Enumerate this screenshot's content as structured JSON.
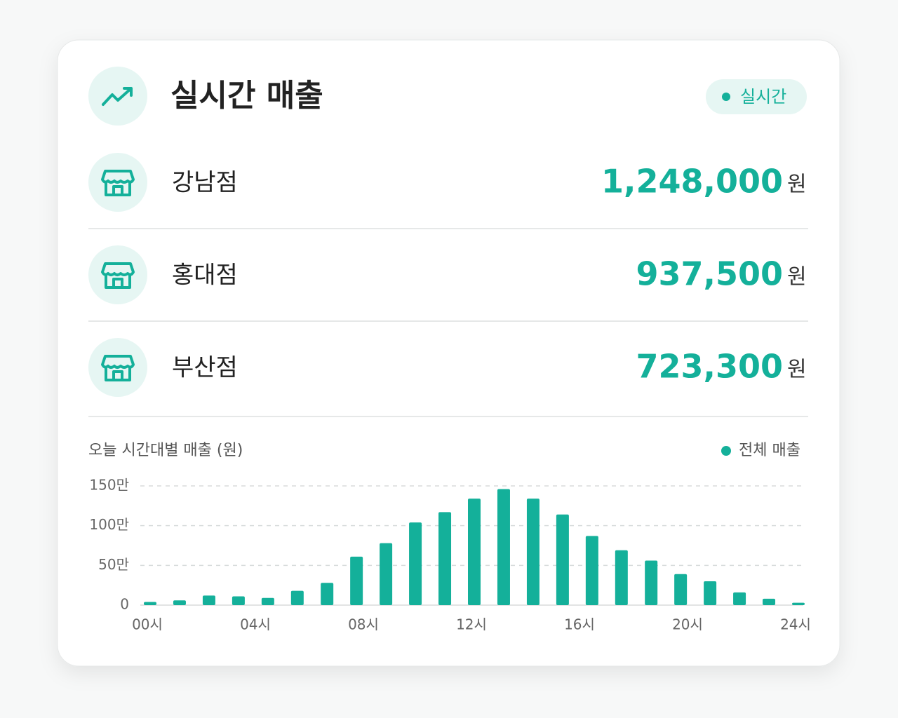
{
  "header": {
    "title": "실시간 매출",
    "badge": "실시간"
  },
  "stores": [
    {
      "name": "강남점",
      "amount": "1,248,000",
      "unit": "원"
    },
    {
      "name": "홍대점",
      "amount": "937,500",
      "unit": "원"
    },
    {
      "name": "부산점",
      "amount": "723,300",
      "unit": "원"
    }
  ],
  "chart_data": {
    "type": "bar",
    "title": "오늘 시간대별 매출 (원)",
    "x": [
      0,
      1.09,
      2.18,
      3.27,
      4.36,
      5.45,
      6.55,
      7.64,
      8.73,
      9.82,
      10.91,
      12,
      13.09,
      14.18,
      15.27,
      16.36,
      17.45,
      18.55,
      19.64,
      20.73,
      21.82,
      22.91,
      24
    ],
    "series": [
      {
        "name": "전체 매출",
        "color": "#14b09a",
        "values": [
          40000,
          60000,
          120000,
          110000,
          90000,
          180000,
          280000,
          610000,
          780000,
          1040000,
          1170000,
          1340000,
          1460000,
          1340000,
          1140000,
          870000,
          690000,
          560000,
          390000,
          300000,
          160000,
          80000,
          30000
        ]
      }
    ],
    "xlim": [
      0,
      24
    ],
    "xticks": [
      {
        "value": 0,
        "label": "00시"
      },
      {
        "value": 4,
        "label": "04시"
      },
      {
        "value": 8,
        "label": "08시"
      },
      {
        "value": 12,
        "label": "12시"
      },
      {
        "value": 16,
        "label": "16시"
      },
      {
        "value": 20,
        "label": "20시"
      },
      {
        "value": 24,
        "label": "24시"
      }
    ],
    "ylim": [
      0,
      1500000
    ],
    "yticks": [
      0,
      {
        "value": 500000,
        "label": "50만"
      },
      {
        "value": 1000000,
        "label": "100만"
      },
      {
        "value": 1500000,
        "label": "150만"
      }
    ],
    "grid": true,
    "legend": "top-right"
  }
}
